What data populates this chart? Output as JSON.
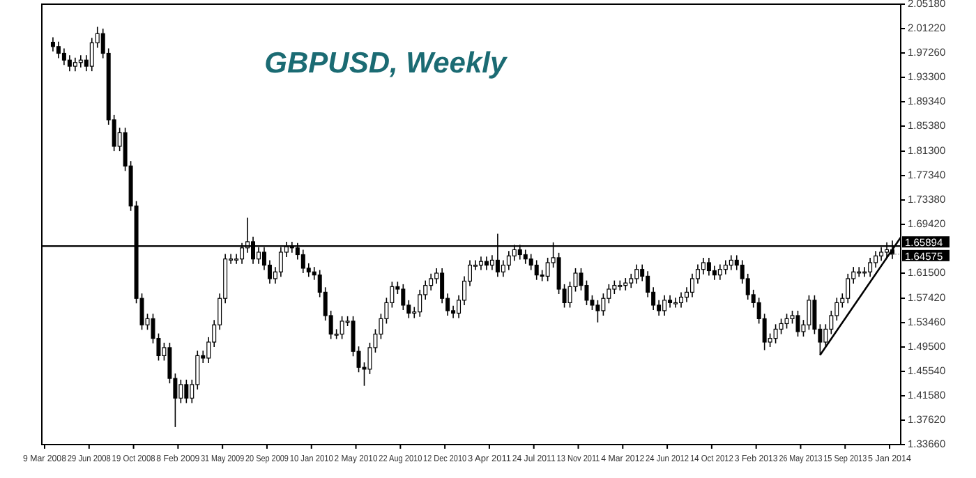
{
  "chart_data": {
    "type": "candlestick",
    "title": "GBPUSD, Weekly",
    "x": [
      "2008-03-30",
      "2008-04-13",
      "2008-04-27",
      "2008-05-11",
      "2008-05-25",
      "2008-06-08",
      "2008-06-22",
      "2008-07-06",
      "2008-07-20",
      "2008-08-03",
      "2008-08-17",
      "2008-08-31",
      "2008-09-14",
      "2008-09-28",
      "2008-10-12",
      "2008-10-26",
      "2008-11-09",
      "2008-11-23",
      "2008-12-07",
      "2008-12-21",
      "2009-01-04",
      "2009-01-18",
      "2009-02-01",
      "2009-02-15",
      "2009-03-01",
      "2009-03-15",
      "2009-03-29",
      "2009-04-12",
      "2009-04-26",
      "2009-05-10",
      "2009-05-24",
      "2009-06-07",
      "2009-06-21",
      "2009-07-05",
      "2009-07-19",
      "2009-08-02",
      "2009-08-16",
      "2009-08-30",
      "2009-09-13",
      "2009-09-27",
      "2009-10-11",
      "2009-10-25",
      "2009-11-08",
      "2009-11-22",
      "2009-12-06",
      "2009-12-20",
      "2010-01-03",
      "2010-01-17",
      "2010-01-31",
      "2010-02-14",
      "2010-02-28",
      "2010-03-14",
      "2010-03-28",
      "2010-04-11",
      "2010-04-25",
      "2010-05-09",
      "2010-05-23",
      "2010-06-06",
      "2010-06-20",
      "2010-07-04",
      "2010-07-18",
      "2010-08-01",
      "2010-08-15",
      "2010-08-29",
      "2010-09-12",
      "2010-09-26",
      "2010-10-10",
      "2010-10-24",
      "2010-11-07",
      "2010-11-21",
      "2010-12-05",
      "2010-12-19",
      "2011-01-02",
      "2011-01-16",
      "2011-01-30",
      "2011-02-13",
      "2011-02-27",
      "2011-03-13",
      "2011-03-27",
      "2011-04-10",
      "2011-04-24",
      "2011-05-08",
      "2011-05-22",
      "2011-06-05",
      "2011-06-19",
      "2011-07-03",
      "2011-07-17",
      "2011-07-31",
      "2011-08-14",
      "2011-08-28",
      "2011-09-11",
      "2011-09-25",
      "2011-10-09",
      "2011-10-23",
      "2011-11-06",
      "2011-11-20",
      "2011-12-04",
      "2011-12-18",
      "2012-01-01",
      "2012-01-15",
      "2012-01-29",
      "2012-02-12",
      "2012-02-26",
      "2012-03-11",
      "2012-03-25",
      "2012-04-08",
      "2012-04-22",
      "2012-05-06",
      "2012-05-20",
      "2012-06-03",
      "2012-06-17",
      "2012-07-01",
      "2012-07-15",
      "2012-07-29",
      "2012-08-12",
      "2012-08-26",
      "2012-09-09",
      "2012-09-23",
      "2012-10-07",
      "2012-10-21",
      "2012-11-04",
      "2012-11-18",
      "2012-12-02",
      "2012-12-16",
      "2012-12-30",
      "2013-01-13",
      "2013-01-27",
      "2013-02-10",
      "2013-02-24",
      "2013-03-10",
      "2013-03-24",
      "2013-04-07",
      "2013-04-21",
      "2013-05-05",
      "2013-05-19",
      "2013-06-02",
      "2013-06-16",
      "2013-06-30",
      "2013-07-14",
      "2013-07-28",
      "2013-08-11",
      "2013-08-25",
      "2013-09-08",
      "2013-09-22",
      "2013-10-06",
      "2013-10-20",
      "2013-11-03",
      "2013-11-17",
      "2013-12-01",
      "2013-12-15",
      "2013-12-29",
      "2014-01-12"
    ],
    "series": [
      {
        "color": "#000000",
        "ohlc": [
          [
            1.99,
            1.998,
            1.975,
            1.983
          ],
          [
            1.983,
            1.991,
            1.964,
            1.972
          ],
          [
            1.972,
            1.98,
            1.953,
            1.961
          ],
          [
            1.961,
            1.969,
            1.943,
            1.951
          ],
          [
            1.951,
            1.965,
            1.943,
            1.957
          ],
          [
            1.957,
            1.969,
            1.949,
            1.961
          ],
          [
            1.961,
            1.969,
            1.943,
            1.951
          ],
          [
            1.951,
            1.997,
            1.943,
            1.989
          ],
          [
            1.989,
            2.015,
            1.981,
            2.004
          ],
          [
            2.004,
            2.012,
            1.964,
            1.972
          ],
          [
            1.972,
            1.98,
            1.856,
            1.864
          ],
          [
            1.864,
            1.872,
            1.813,
            1.821
          ],
          [
            1.821,
            1.851,
            1.813,
            1.843
          ],
          [
            1.843,
            1.851,
            1.781,
            1.789
          ],
          [
            1.789,
            1.797,
            1.716,
            1.724
          ],
          [
            1.724,
            1.732,
            1.566,
            1.574
          ],
          [
            1.574,
            1.582,
            1.523,
            1.531
          ],
          [
            1.531,
            1.549,
            1.523,
            1.541
          ],
          [
            1.541,
            1.549,
            1.501,
            1.509
          ],
          [
            1.509,
            1.517,
            1.473,
            1.481
          ],
          [
            1.481,
            1.502,
            1.473,
            1.494
          ],
          [
            1.494,
            1.502,
            1.436,
            1.444
          ],
          [
            1.444,
            1.452,
            1.365,
            1.412
          ],
          [
            1.412,
            1.442,
            1.404,
            1.434
          ],
          [
            1.434,
            1.442,
            1.404,
            1.412
          ],
          [
            1.412,
            1.442,
            1.404,
            1.434
          ],
          [
            1.434,
            1.489,
            1.426,
            1.481
          ],
          [
            1.481,
            1.489,
            1.469,
            1.477
          ],
          [
            1.477,
            1.511,
            1.469,
            1.503
          ],
          [
            1.503,
            1.539,
            1.495,
            1.531
          ],
          [
            1.531,
            1.582,
            1.523,
            1.574
          ],
          [
            1.574,
            1.646,
            1.566,
            1.638
          ],
          [
            1.638,
            1.646,
            1.63,
            1.638
          ],
          [
            1.638,
            1.646,
            1.63,
            1.638
          ],
          [
            1.638,
            1.664,
            1.63,
            1.656
          ],
          [
            1.656,
            1.705,
            1.648,
            1.666
          ],
          [
            1.666,
            1.674,
            1.63,
            1.638
          ],
          [
            1.638,
            1.657,
            1.63,
            1.649
          ],
          [
            1.649,
            1.657,
            1.62,
            1.628
          ],
          [
            1.628,
            1.636,
            1.598,
            1.606
          ],
          [
            1.606,
            1.625,
            1.598,
            1.617
          ],
          [
            1.617,
            1.657,
            1.609,
            1.649
          ],
          [
            1.649,
            1.666,
            1.641,
            1.658
          ],
          [
            1.658,
            1.666,
            1.648,
            1.656
          ],
          [
            1.656,
            1.664,
            1.637,
            1.645
          ],
          [
            1.645,
            1.653,
            1.615,
            1.623
          ],
          [
            1.623,
            1.631,
            1.609,
            1.617
          ],
          [
            1.617,
            1.625,
            1.604,
            1.612
          ],
          [
            1.612,
            1.62,
            1.576,
            1.584
          ],
          [
            1.584,
            1.592,
            1.538,
            1.546
          ],
          [
            1.546,
            1.554,
            1.508,
            1.516
          ],
          [
            1.516,
            1.524,
            1.508,
            1.516
          ],
          [
            1.516,
            1.545,
            1.508,
            1.537
          ],
          [
            1.537,
            1.545,
            1.529,
            1.537
          ],
          [
            1.537,
            1.545,
            1.48,
            1.488
          ],
          [
            1.488,
            1.496,
            1.454,
            1.462
          ],
          [
            1.462,
            1.47,
            1.432,
            1.459
          ],
          [
            1.459,
            1.502,
            1.451,
            1.494
          ],
          [
            1.494,
            1.524,
            1.486,
            1.516
          ],
          [
            1.516,
            1.549,
            1.508,
            1.541
          ],
          [
            1.541,
            1.575,
            1.533,
            1.567
          ],
          [
            1.567,
            1.601,
            1.559,
            1.593
          ],
          [
            1.593,
            1.601,
            1.581,
            1.589
          ],
          [
            1.589,
            1.597,
            1.555,
            1.563
          ],
          [
            1.563,
            1.571,
            1.542,
            1.55
          ],
          [
            1.55,
            1.56,
            1.542,
            1.552
          ],
          [
            1.552,
            1.588,
            1.544,
            1.58
          ],
          [
            1.58,
            1.603,
            1.572,
            1.595
          ],
          [
            1.595,
            1.614,
            1.587,
            1.606
          ],
          [
            1.606,
            1.623,
            1.598,
            1.615
          ],
          [
            1.615,
            1.623,
            1.566,
            1.574
          ],
          [
            1.574,
            1.582,
            1.546,
            1.554
          ],
          [
            1.554,
            1.562,
            1.542,
            1.55
          ],
          [
            1.55,
            1.579,
            1.542,
            1.571
          ],
          [
            1.571,
            1.61,
            1.563,
            1.602
          ],
          [
            1.602,
            1.636,
            1.594,
            1.628
          ],
          [
            1.628,
            1.636,
            1.62,
            1.628
          ],
          [
            1.628,
            1.642,
            1.62,
            1.634
          ],
          [
            1.634,
            1.642,
            1.62,
            1.628
          ],
          [
            1.628,
            1.644,
            1.62,
            1.636
          ],
          [
            1.636,
            1.679,
            1.609,
            1.617
          ],
          [
            1.617,
            1.636,
            1.609,
            1.628
          ],
          [
            1.628,
            1.651,
            1.62,
            1.643
          ],
          [
            1.643,
            1.661,
            1.635,
            1.653
          ],
          [
            1.653,
            1.661,
            1.637,
            1.645
          ],
          [
            1.645,
            1.653,
            1.63,
            1.638
          ],
          [
            1.638,
            1.646,
            1.62,
            1.628
          ],
          [
            1.628,
            1.636,
            1.604,
            1.612
          ],
          [
            1.612,
            1.62,
            1.602,
            1.61
          ],
          [
            1.61,
            1.64,
            1.602,
            1.632
          ],
          [
            1.632,
            1.665,
            1.624,
            1.64
          ],
          [
            1.64,
            1.648,
            1.581,
            1.589
          ],
          [
            1.589,
            1.597,
            1.559,
            1.567
          ],
          [
            1.567,
            1.601,
            1.559,
            1.593
          ],
          [
            1.593,
            1.623,
            1.585,
            1.615
          ],
          [
            1.615,
            1.623,
            1.587,
            1.595
          ],
          [
            1.595,
            1.603,
            1.563,
            1.571
          ],
          [
            1.571,
            1.579,
            1.555,
            1.563
          ],
          [
            1.563,
            1.571,
            1.535,
            1.554
          ],
          [
            1.554,
            1.582,
            1.546,
            1.574
          ],
          [
            1.574,
            1.597,
            1.566,
            1.589
          ],
          [
            1.589,
            1.603,
            1.581,
            1.595
          ],
          [
            1.595,
            1.603,
            1.587,
            1.595
          ],
          [
            1.595,
            1.607,
            1.587,
            1.599
          ],
          [
            1.599,
            1.614,
            1.591,
            1.606
          ],
          [
            1.606,
            1.629,
            1.598,
            1.621
          ],
          [
            1.621,
            1.629,
            1.602,
            1.61
          ],
          [
            1.61,
            1.618,
            1.576,
            1.584
          ],
          [
            1.584,
            1.592,
            1.555,
            1.563
          ],
          [
            1.563,
            1.571,
            1.546,
            1.554
          ],
          [
            1.554,
            1.579,
            1.546,
            1.571
          ],
          [
            1.571,
            1.579,
            1.559,
            1.567
          ],
          [
            1.567,
            1.575,
            1.559,
            1.567
          ],
          [
            1.567,
            1.584,
            1.559,
            1.576
          ],
          [
            1.576,
            1.592,
            1.568,
            1.584
          ],
          [
            1.584,
            1.614,
            1.576,
            1.606
          ],
          [
            1.606,
            1.629,
            1.598,
            1.621
          ],
          [
            1.621,
            1.64,
            1.613,
            1.632
          ],
          [
            1.632,
            1.64,
            1.611,
            1.619
          ],
          [
            1.619,
            1.627,
            1.604,
            1.612
          ],
          [
            1.612,
            1.629,
            1.604,
            1.621
          ],
          [
            1.621,
            1.636,
            1.613,
            1.628
          ],
          [
            1.628,
            1.644,
            1.62,
            1.636
          ],
          [
            1.636,
            1.644,
            1.62,
            1.628
          ],
          [
            1.628,
            1.636,
            1.598,
            1.606
          ],
          [
            1.606,
            1.614,
            1.572,
            1.58
          ],
          [
            1.58,
            1.588,
            1.559,
            1.567
          ],
          [
            1.567,
            1.575,
            1.533,
            1.541
          ],
          [
            1.541,
            1.549,
            1.49,
            1.503
          ],
          [
            1.503,
            1.517,
            1.495,
            1.509
          ],
          [
            1.509,
            1.532,
            1.501,
            1.524
          ],
          [
            1.524,
            1.541,
            1.516,
            1.533
          ],
          [
            1.533,
            1.549,
            1.525,
            1.541
          ],
          [
            1.541,
            1.554,
            1.533,
            1.546
          ],
          [
            1.546,
            1.554,
            1.512,
            1.52
          ],
          [
            1.52,
            1.539,
            1.512,
            1.531
          ],
          [
            1.531,
            1.579,
            1.523,
            1.571
          ],
          [
            1.571,
            1.579,
            1.516,
            1.524
          ],
          [
            1.524,
            1.532,
            1.482,
            1.503
          ],
          [
            1.503,
            1.532,
            1.495,
            1.524
          ],
          [
            1.524,
            1.554,
            1.516,
            1.546
          ],
          [
            1.546,
            1.575,
            1.538,
            1.567
          ],
          [
            1.567,
            1.582,
            1.559,
            1.574
          ],
          [
            1.574,
            1.614,
            1.566,
            1.606
          ],
          [
            1.606,
            1.625,
            1.598,
            1.617
          ],
          [
            1.617,
            1.625,
            1.609,
            1.617
          ],
          [
            1.617,
            1.625,
            1.609,
            1.617
          ],
          [
            1.617,
            1.64,
            1.609,
            1.632
          ],
          [
            1.632,
            1.651,
            1.624,
            1.643
          ],
          [
            1.643,
            1.657,
            1.635,
            1.649
          ],
          [
            1.649,
            1.665,
            1.641,
            1.653
          ],
          [
            1.653,
            1.668,
            1.638,
            1.64575
          ]
        ]
      },
      {
        "type": "line",
        "color": "#000000",
        "x": [
          "2013-07-14",
          "2014-02-02"
        ],
        "values": [
          1.482,
          1.673
        ]
      }
    ],
    "xlim": [
      "2008-03-02",
      "2014-02-02"
    ],
    "xticks": [
      {
        "value": "2008-03-09",
        "label": "9 Mar 2008"
      },
      {
        "value": "2008-06-29",
        "label": "29 Jun 2008"
      },
      {
        "value": "2008-10-19",
        "label": "19 Oct 2008"
      },
      {
        "value": "2009-02-08",
        "label": "8 Feb 2009"
      },
      {
        "value": "2009-05-31",
        "label": "31 May 2009"
      },
      {
        "value": "2009-09-20",
        "label": "20 Sep 2009"
      },
      {
        "value": "2010-01-10",
        "label": "10 Jan 2010"
      },
      {
        "value": "2010-05-02",
        "label": "2 May 2010"
      },
      {
        "value": "2010-08-22",
        "label": "22 Aug 2010"
      },
      {
        "value": "2010-12-12",
        "label": "12 Dec 2010"
      },
      {
        "value": "2011-04-03",
        "label": "3 Apr 2011"
      },
      {
        "value": "2011-07-24",
        "label": "24 Jul 2011"
      },
      {
        "value": "2011-11-13",
        "label": "13 Nov 2011"
      },
      {
        "value": "2012-03-04",
        "label": "4 Mar 2012"
      },
      {
        "value": "2012-06-24",
        "label": "24 Jun 2012"
      },
      {
        "value": "2012-10-14",
        "label": "14 Oct 2012"
      },
      {
        "value": "2013-02-03",
        "label": "3 Feb 2013"
      },
      {
        "value": "2013-05-26",
        "label": "26 May 2013"
      },
      {
        "value": "2013-09-15",
        "label": "15 Sep 2013"
      },
      {
        "value": "2014-01-05",
        "label": "5 Jan 2014"
      }
    ],
    "ylim": [
      1.3366,
      2.0518
    ],
    "yticks": [
      {
        "value": 1.3366,
        "label": "1.33660"
      },
      {
        "value": 1.3762,
        "label": "1.37620"
      },
      {
        "value": 1.4158,
        "label": "1.41580"
      },
      {
        "value": 1.4554,
        "label": "1.45540"
      },
      {
        "value": 1.495,
        "label": "1.49500"
      },
      {
        "value": 1.5346,
        "label": "1.53460"
      },
      {
        "value": 1.5742,
        "label": "1.57420"
      },
      {
        "value": 1.615,
        "label": "1.61500"
      },
      {
        "value": 1.6942,
        "label": "1.69420"
      },
      {
        "value": 1.7338,
        "label": "1.73380"
      },
      {
        "value": 1.7734,
        "label": "1.77340"
      },
      {
        "value": 1.813,
        "label": "1.81300"
      },
      {
        "value": 1.8538,
        "label": "1.85380"
      },
      {
        "value": 1.8934,
        "label": "1.89340"
      },
      {
        "value": 1.933,
        "label": "1.93300"
      },
      {
        "value": 1.9726,
        "label": "1.97260"
      },
      {
        "value": 2.0122,
        "label": "2.01220"
      },
      {
        "value": 2.0518,
        "label": "2.05180"
      }
    ],
    "ref_lines": [
      {
        "axis": "y",
        "value": 1.65894,
        "label": "1.65894",
        "color": "#000000"
      }
    ],
    "annotations": [
      {
        "text": "1.64575",
        "x": "2014-01-12",
        "y": 1.64575
      }
    ],
    "grid": false
  }
}
